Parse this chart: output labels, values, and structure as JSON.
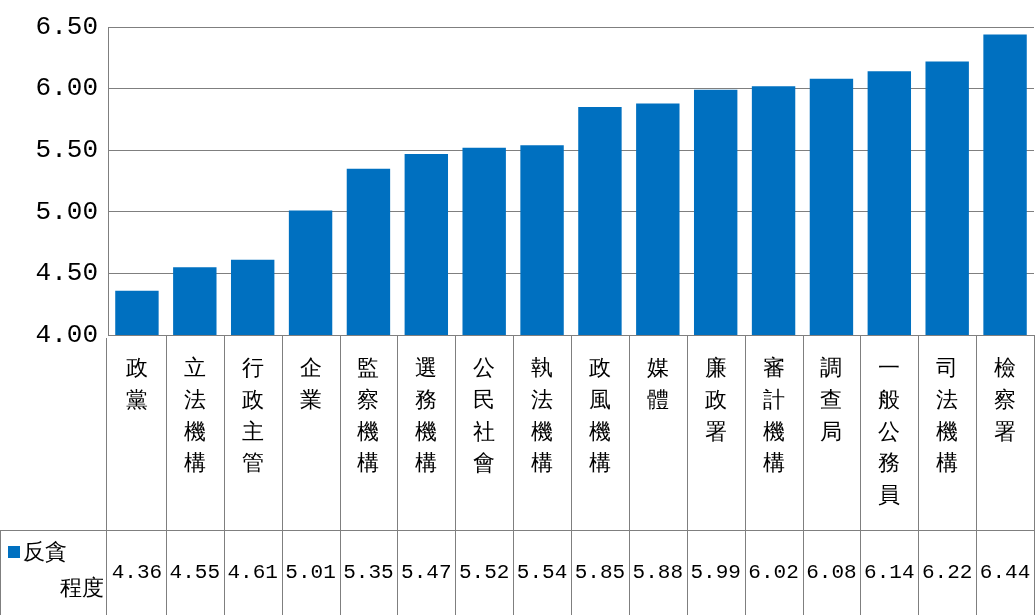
{
  "chart_data": {
    "type": "bar",
    "categories": [
      "政黨",
      "立法機構",
      "行政主管",
      "企業",
      "監察機構",
      "選務機構",
      "公民社會",
      "執法機構",
      "政風機構",
      "媒體",
      "廉政署",
      "審計機構",
      "調查局",
      "一般公務員",
      "司法機構",
      "檢察署"
    ],
    "series": [
      {
        "name": "反貪程度",
        "color": "#0070c0",
        "values": [
          4.36,
          4.55,
          4.61,
          5.01,
          5.35,
          5.47,
          5.52,
          5.54,
          5.85,
          5.88,
          5.99,
          6.02,
          6.08,
          6.14,
          6.22,
          6.44
        ]
      }
    ],
    "ylim": [
      4,
      6.5
    ],
    "yticks": [
      {
        "value": 4,
        "label": "4.00"
      },
      {
        "value": 4.5,
        "label": "4.50"
      },
      {
        "value": 5,
        "label": "5.00"
      },
      {
        "value": 5.5,
        "label": "5.50"
      },
      {
        "value": 6,
        "label": "6.00"
      },
      {
        "value": 6.5,
        "label": "6.50"
      }
    ],
    "grid": "y",
    "legend": "bottom",
    "data_labels": true
  }
}
